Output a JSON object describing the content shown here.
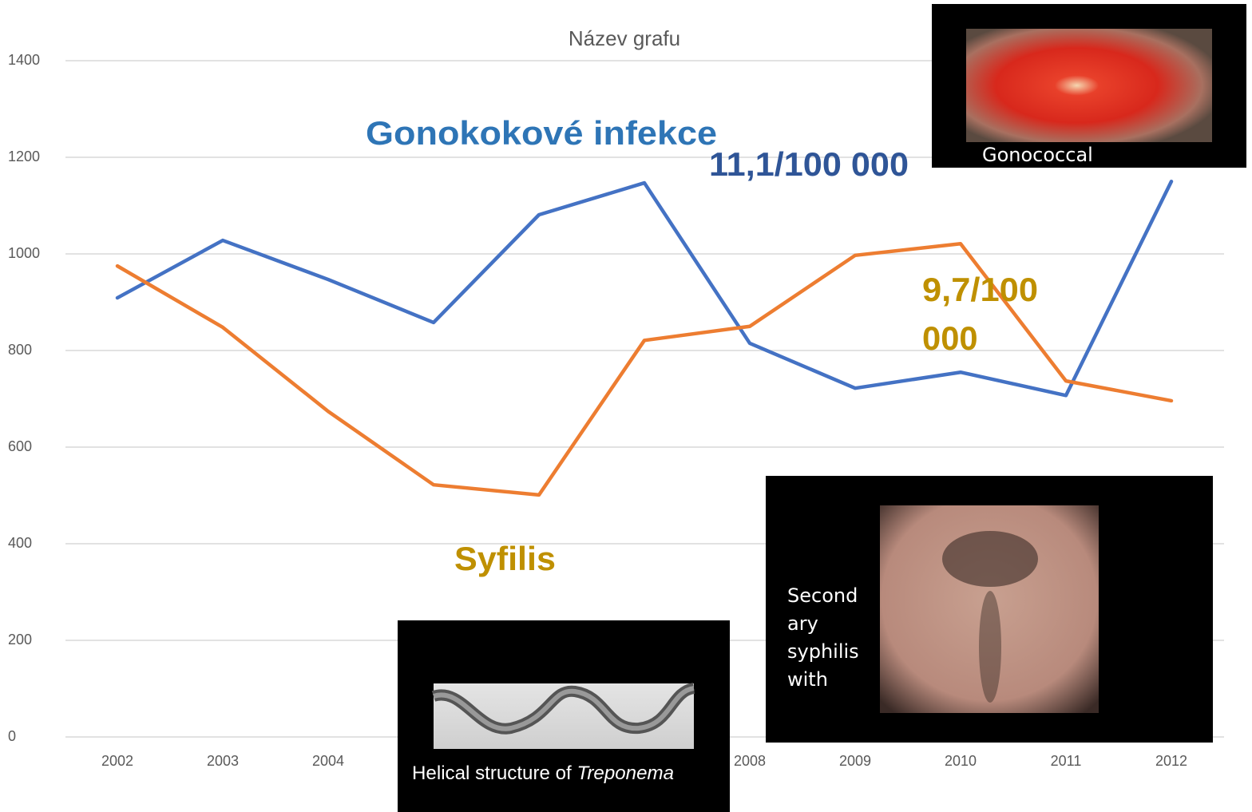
{
  "chart_data": {
    "type": "line",
    "title": "Název grafu",
    "categories": [
      "2002",
      "2003",
      "2004",
      null,
      null,
      null,
      "2008",
      "2009",
      "2010",
      "2011",
      "2012"
    ],
    "series": [
      {
        "color": "#4472c4",
        "values": [
          909,
          1028,
          947,
          858,
          1081,
          1147,
          815,
          722,
          755,
          707,
          1150
        ]
      },
      {
        "color": "#ed7d31",
        "values": [
          975,
          848,
          674,
          522,
          501,
          821,
          850,
          997,
          1021,
          737,
          696
        ]
      }
    ],
    "ylim": [
      0,
      1400
    ],
    "yticks": [
      0,
      200,
      400,
      600,
      800,
      1000,
      1200,
      1400
    ],
    "grid": true,
    "annotations": [
      {
        "lines": [
          "Gonokokové  infekce"
        ],
        "color": "#2e75b6"
      },
      {
        "lines": [
          "11,1/100 000"
        ],
        "color": "#2f5597"
      },
      {
        "lines": [
          "9,7/100",
          "000"
        ],
        "color": "#bf9000"
      },
      {
        "lines": [
          "Syfilis"
        ],
        "color": "#bf9000"
      }
    ],
    "images": [
      {
        "caption": [
          "Gonococcal"
        ]
      },
      {
        "caption": [
          "Second",
          "ary",
          "syphilis",
          "with"
        ]
      },
      {
        "caption": [
          "Helical structure of ",
          "Treponema"
        ]
      }
    ]
  }
}
